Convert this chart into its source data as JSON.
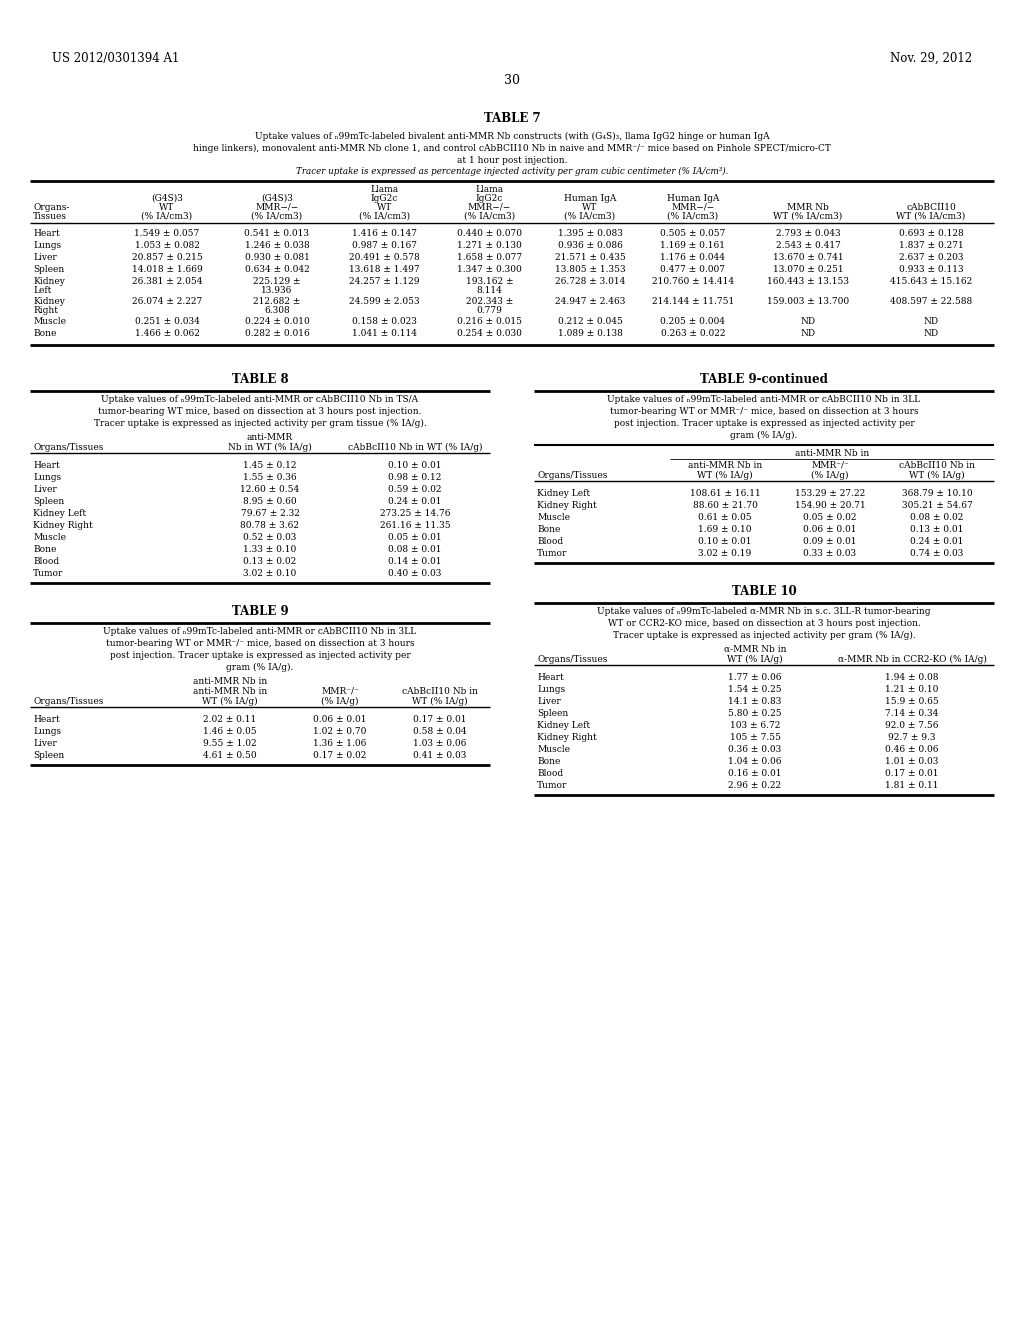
{
  "page_header_left": "US 2012/0301394 A1",
  "page_header_right": "Nov. 29, 2012",
  "page_number": "30",
  "background_color": "#ffffff",
  "text_color": "#000000",
  "table7_title": "TABLE 7",
  "table7_cap1": "Uptake values of ₙ99mTc-labeled bivalent anti-MMR Nb constructs (with (G₄S)₃, llama IgG2 hinge or human IgA",
  "table7_cap2": "hinge linkers), monovalent anti-MMR Nb clone 1, and control cAbBCII10 Nb in naive and MMR⁻/⁻ mice based on Pinhole SPECT/micro-CT",
  "table7_cap3": "at 1 hour post injection.",
  "table7_cap4": "Tracer uptake is expressed as percentage injected activity per gram cubic centimeter (% IA/cm³).",
  "table7_data": [
    [
      "Heart",
      "1.549 ± 0.057",
      "0.541 ± 0.013",
      "1.416 ± 0.147",
      "0.440 ± 0.070",
      "1.395 ± 0.083",
      "0.505 ± 0.057",
      "2.793 ± 0.043",
      "0.693 ± 0.128"
    ],
    [
      "Lungs",
      "1.053 ± 0.082",
      "1.246 ± 0.038",
      "0.987 ± 0.167",
      "1.271 ± 0.130",
      "0.936 ± 0.086",
      "1.169 ± 0.161",
      "2.543 ± 0.417",
      "1.837 ± 0.271"
    ],
    [
      "Liver",
      "20.857 ± 0.215",
      "0.930 ± 0.081",
      "20.491 ± 0.578",
      "1.658 ± 0.077",
      "21.571 ± 0.435",
      "1.176 ± 0.044",
      "13.670 ± 0.741",
      "2.637 ± 0.203"
    ],
    [
      "Spleen",
      "14.018 ± 1.669",
      "0.634 ± 0.042",
      "13.618 ± 1.497",
      "1.347 ± 0.300",
      "13.805 ± 1.353",
      "0.477 ± 0.007",
      "13.070 ± 0.251",
      "0.933 ± 0.113"
    ],
    [
      "Kidney Left",
      "26.381 ± 2.054",
      "225.129 ± 13.936",
      "24.257 ± 1.129",
      "193.162 ± 8.114",
      "26.728 ± 3.014",
      "210.760 ± 14.414",
      "160.443 ± 13.153",
      "415.643 ± 15.162"
    ],
    [
      "Kidney Right",
      "26.074 ± 2.227",
      "212.682 ± 6.308",
      "24.599 ± 2.053",
      "202.343 ± 0.779",
      "24.947 ± 2.463",
      "214.144 ± 11.751",
      "159.003 ± 13.700",
      "408.597 ± 22.588"
    ],
    [
      "Muscle",
      "0.251 ± 0.034",
      "0.224 ± 0.010",
      "0.158 ± 0.023",
      "0.216 ± 0.015",
      "0.212 ± 0.045",
      "0.205 ± 0.004",
      "ND",
      "ND"
    ],
    [
      "Bone",
      "1.466 ± 0.062",
      "0.282 ± 0.016",
      "1.041 ± 0.114",
      "0.254 ± 0.030",
      "1.089 ± 0.138",
      "0.263 ± 0.022",
      "ND",
      "ND"
    ]
  ],
  "table8_title": "TABLE 8",
  "table8_cap1": "Uptake values of ₙ99mTc-labeled anti-MMR or cAbBCII10 Nb in TS/A",
  "table8_cap2": "tumor-bearing WT mice, based on dissection at 3 hours post injection.",
  "table8_cap3": "Tracer uptake is expressed as injected activity per gram tissue (% IA/g).",
  "table8_data": [
    [
      "Heart",
      "1.45 ± 0.12",
      "0.10 ± 0.01"
    ],
    [
      "Lungs",
      "1.55 ± 0.36",
      "0.98 ± 0.12"
    ],
    [
      "Liver",
      "12.60 ± 0.54",
      "0.59 ± 0.02"
    ],
    [
      "Spleen",
      "8.95 ± 0.60",
      "0.24 ± 0.01"
    ],
    [
      "Kidney Left",
      "79.67 ± 2.32",
      "273.25 ± 14.76"
    ],
    [
      "Kidney Right",
      "80.78 ± 3.62",
      "261.16 ± 11.35"
    ],
    [
      "Muscle",
      "0.52 ± 0.03",
      "0.05 ± 0.01"
    ],
    [
      "Bone",
      "1.33 ± 0.10",
      "0.08 ± 0.01"
    ],
    [
      "Blood",
      "0.13 ± 0.02",
      "0.14 ± 0.01"
    ],
    [
      "Tumor",
      "3.02 ± 0.10",
      "0.40 ± 0.03"
    ]
  ],
  "table9c_title": "TABLE 9-continued",
  "table9c_cap1": "Uptake values of ₙ99mTc-labeled anti-MMR or cAbBCII10 Nb in 3LL",
  "table9c_cap2": "tumor-bearing WT or MMR⁻/⁻ mice, based on dissection at 3 hours",
  "table9c_cap3": "post injection. Tracer uptake is expressed as injected activity per",
  "table9c_cap4": "gram (% IA/g).",
  "table9c_data": [
    [
      "Kidney Left",
      "108.61 ± 16.11",
      "153.29 ± 27.22",
      "368.79 ± 10.10"
    ],
    [
      "Kidney Right",
      "88.60 ± 21.70",
      "154.90 ± 20.71",
      "305.21 ± 54.67"
    ],
    [
      "Muscle",
      "0.61 ± 0.05",
      "0.05 ± 0.02",
      "0.08 ± 0.02"
    ],
    [
      "Bone",
      "1.69 ± 0.10",
      "0.06 ± 0.01",
      "0.13 ± 0.01"
    ],
    [
      "Blood",
      "0.10 ± 0.01",
      "0.09 ± 0.01",
      "0.24 ± 0.01"
    ],
    [
      "Tumor",
      "3.02 ± 0.19",
      "0.33 ± 0.03",
      "0.74 ± 0.03"
    ]
  ],
  "table9_title": "TABLE 9",
  "table9_cap1": "Uptake values of ₙ99mTc-labeled anti-MMR or cAbBCII10 Nb in 3LL",
  "table9_cap2": "tumor-bearing WT or MMR⁻/⁻ mice, based on dissection at 3 hours",
  "table9_cap3": "post injection. Tracer uptake is expressed as injected activity per",
  "table9_cap4": "gram (% IA/g).",
  "table9_data": [
    [
      "Heart",
      "2.02 ± 0.11",
      "0.06 ± 0.01",
      "0.17 ± 0.01"
    ],
    [
      "Lungs",
      "1.46 ± 0.05",
      "1.02 ± 0.70",
      "0.58 ± 0.04"
    ],
    [
      "Liver",
      "9.55 ± 1.02",
      "1.36 ± 1.06",
      "1.03 ± 0.06"
    ],
    [
      "Spleen",
      "4.61 ± 0.50",
      "0.17 ± 0.02",
      "0.41 ± 0.03"
    ]
  ],
  "table10_title": "TABLE 10",
  "table10_cap1": "Uptake values of ₙ99mTc-labeled α-MMR Nb in s.c. 3LL-R tumor-bearing",
  "table10_cap2": "WT or CCR2-KO mice, based on dissection at 3 hours post injection.",
  "table10_cap3": "Tracer uptake is expressed as injected activity per gram (% IA/g).",
  "table10_data": [
    [
      "Heart",
      "1.77 ± 0.06",
      "1.94 ± 0.08"
    ],
    [
      "Lungs",
      "1.54 ± 0.25",
      "1.21 ± 0.10"
    ],
    [
      "Liver",
      "14.1 ± 0.83",
      "15.9 ± 0.65"
    ],
    [
      "Spleen",
      "5.80 ± 0.25",
      "7.14 ± 0.34"
    ],
    [
      "Kidney Left",
      "103 ± 6.72",
      "92.0 ± 7.56"
    ],
    [
      "Kidney Right",
      "105 ± 7.55",
      "92.7 ± 9.3"
    ],
    [
      "Muscle",
      "0.36 ± 0.03",
      "0.46 ± 0.06"
    ],
    [
      "Bone",
      "1.04 ± 0.06",
      "1.01 ± 0.03"
    ],
    [
      "Blood",
      "0.16 ± 0.01",
      "0.17 ± 0.01"
    ],
    [
      "Tumor",
      "2.96 ± 0.22",
      "1.81 ± 0.11"
    ]
  ]
}
